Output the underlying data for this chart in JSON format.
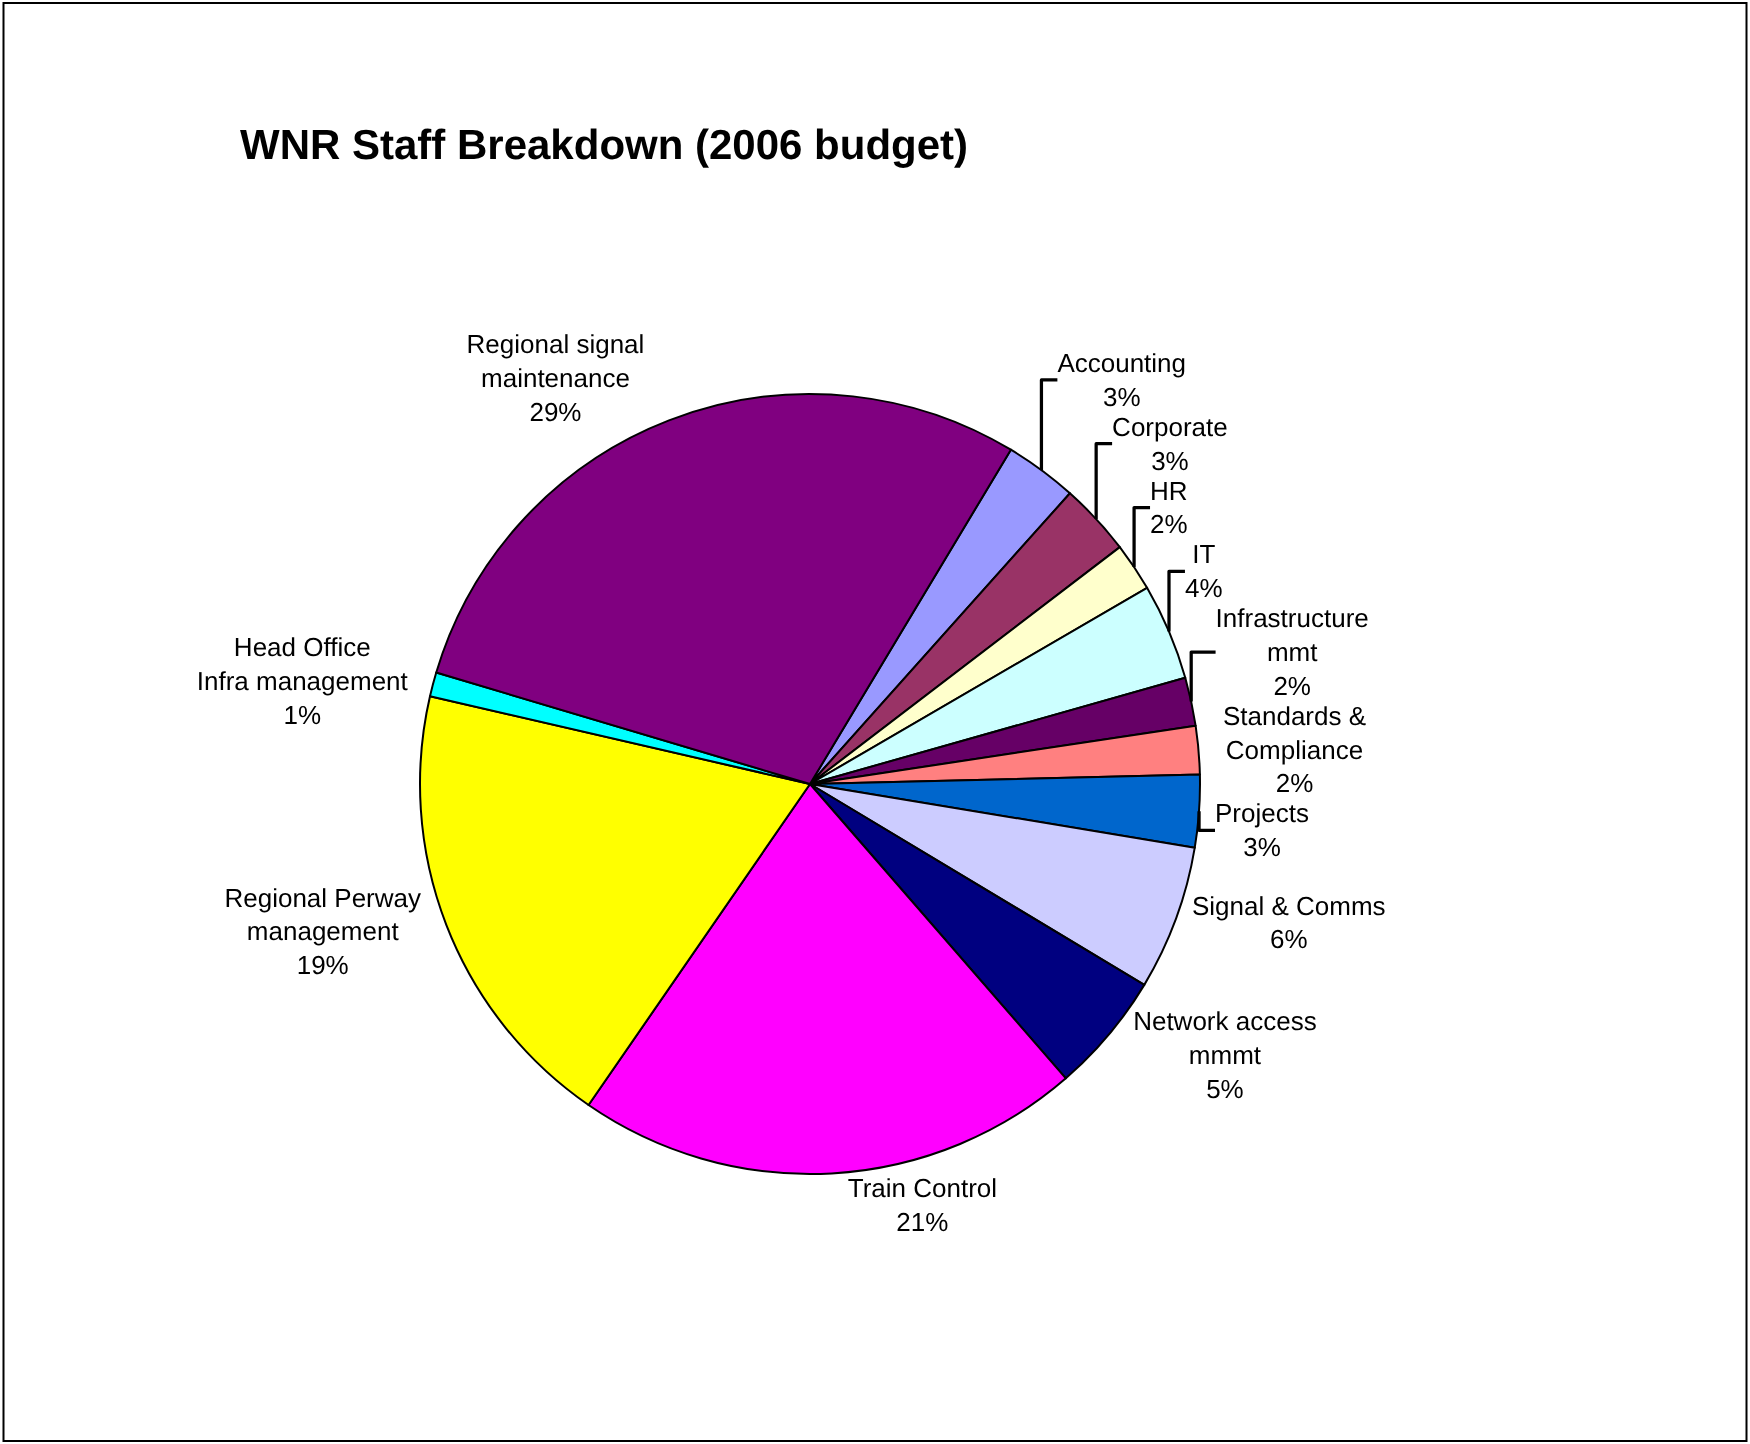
{
  "chart_data": {
    "type": "pie",
    "title": "WNR Staff Breakdown (2006 budget)",
    "categories": [
      "Accounting",
      "Corporate",
      "HR",
      "IT",
      "Infrastructure mmt",
      "Standards & Compliance",
      "Projects",
      "Signal & Comms",
      "Network access mmmt",
      "Train Control",
      "Regional Perway management",
      "Head Office Infra management",
      "Regional signal maintenance"
    ],
    "values": [
      3,
      3,
      2,
      4,
      2,
      2,
      3,
      6,
      5,
      21,
      19,
      1,
      29
    ],
    "value_labels": [
      "3%",
      "3%",
      "2%",
      "4%",
      "2%",
      "2%",
      "3%",
      "6%",
      "5%",
      "21%",
      "19%",
      "1%",
      "29%"
    ],
    "colors": [
      "#9999ff",
      "#993366",
      "#ffffcc",
      "#ccffff",
      "#660066",
      "#ff8080",
      "#0066cc",
      "#ccccff",
      "#000080",
      "#ff00ff",
      "#ffff00",
      "#00ffff",
      "#800080"
    ],
    "legend": false
  }
}
